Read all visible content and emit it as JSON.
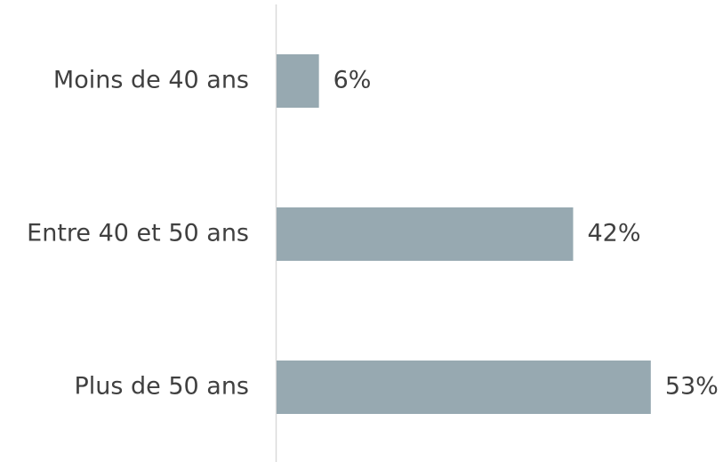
{
  "chart_data": {
    "type": "bar",
    "orientation": "horizontal",
    "categories": [
      "Moins de 40 ans",
      "Entre 40 et 50 ans",
      "Plus de 50 ans"
    ],
    "values": [
      6,
      42,
      53
    ],
    "value_labels": [
      "6%",
      "42%",
      "53%"
    ],
    "color": "#97a9b1"
  }
}
